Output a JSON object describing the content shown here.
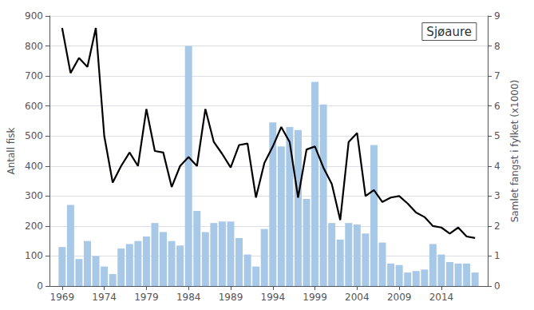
{
  "chart_data": {
    "type": "bar",
    "title": "Sjøaure",
    "ylabel": "Antall fisk",
    "y2label": "Samlet fangst i fylket (x1000)",
    "x": [
      1969,
      1970,
      1971,
      1972,
      1973,
      1974,
      1975,
      1976,
      1977,
      1978,
      1979,
      1980,
      1981,
      1982,
      1983,
      1984,
      1985,
      1986,
      1987,
      1988,
      1989,
      1990,
      1991,
      1992,
      1993,
      1994,
      1995,
      1996,
      1997,
      1998,
      1999,
      2000,
      2001,
      2002,
      2003,
      2004,
      2005,
      2006,
      2007,
      2008,
      2009,
      2010,
      2011,
      2012,
      2013,
      2014,
      2015,
      2016,
      2017,
      2018
    ],
    "series": [
      {
        "type": "bar",
        "color": "#a8c8e8",
        "values": [
          130,
          270,
          90,
          150,
          100,
          65,
          40,
          125,
          140,
          150,
          165,
          210,
          180,
          150,
          135,
          800,
          250,
          180,
          210,
          215,
          215,
          160,
          105,
          65,
          190,
          545,
          465,
          530,
          520,
          290,
          680,
          605,
          210,
          155,
          210,
          205,
          175,
          470,
          145,
          75,
          70,
          45,
          50,
          55,
          140,
          105,
          80,
          75,
          75,
          45
        ]
      },
      {
        "type": "line",
        "color": "#000000",
        "axis": "y2",
        "values": [
          8.6,
          7.1,
          7.6,
          7.3,
          8.6,
          5.0,
          3.45,
          4.0,
          4.45,
          4.0,
          5.9,
          4.5,
          4.45,
          3.3,
          4.0,
          4.3,
          4.0,
          5.9,
          4.8,
          4.4,
          3.95,
          4.7,
          4.75,
          2.95,
          4.1,
          4.65,
          5.3,
          4.8,
          2.95,
          4.55,
          4.65,
          3.95,
          3.4,
          2.2,
          4.8,
          5.1,
          3.0,
          3.2,
          2.8,
          2.95,
          3.0,
          2.75,
          2.45,
          2.3,
          2.0,
          1.95,
          1.75,
          1.95,
          1.65,
          1.6
        ]
      }
    ],
    "xlim": [
      1967.5,
      2019.5
    ],
    "xticks": [
      1969,
      1974,
      1979,
      1984,
      1989,
      1994,
      1999,
      2004,
      2009,
      2014
    ],
    "ylim": [
      0,
      900
    ],
    "yticks": [
      0,
      100,
      200,
      300,
      400,
      500,
      600,
      700,
      800,
      900
    ],
    "y2lim": [
      0,
      9
    ],
    "y2ticks": [
      0,
      1,
      2,
      3,
      4,
      5,
      6,
      7,
      8,
      9
    ],
    "grid": true
  }
}
